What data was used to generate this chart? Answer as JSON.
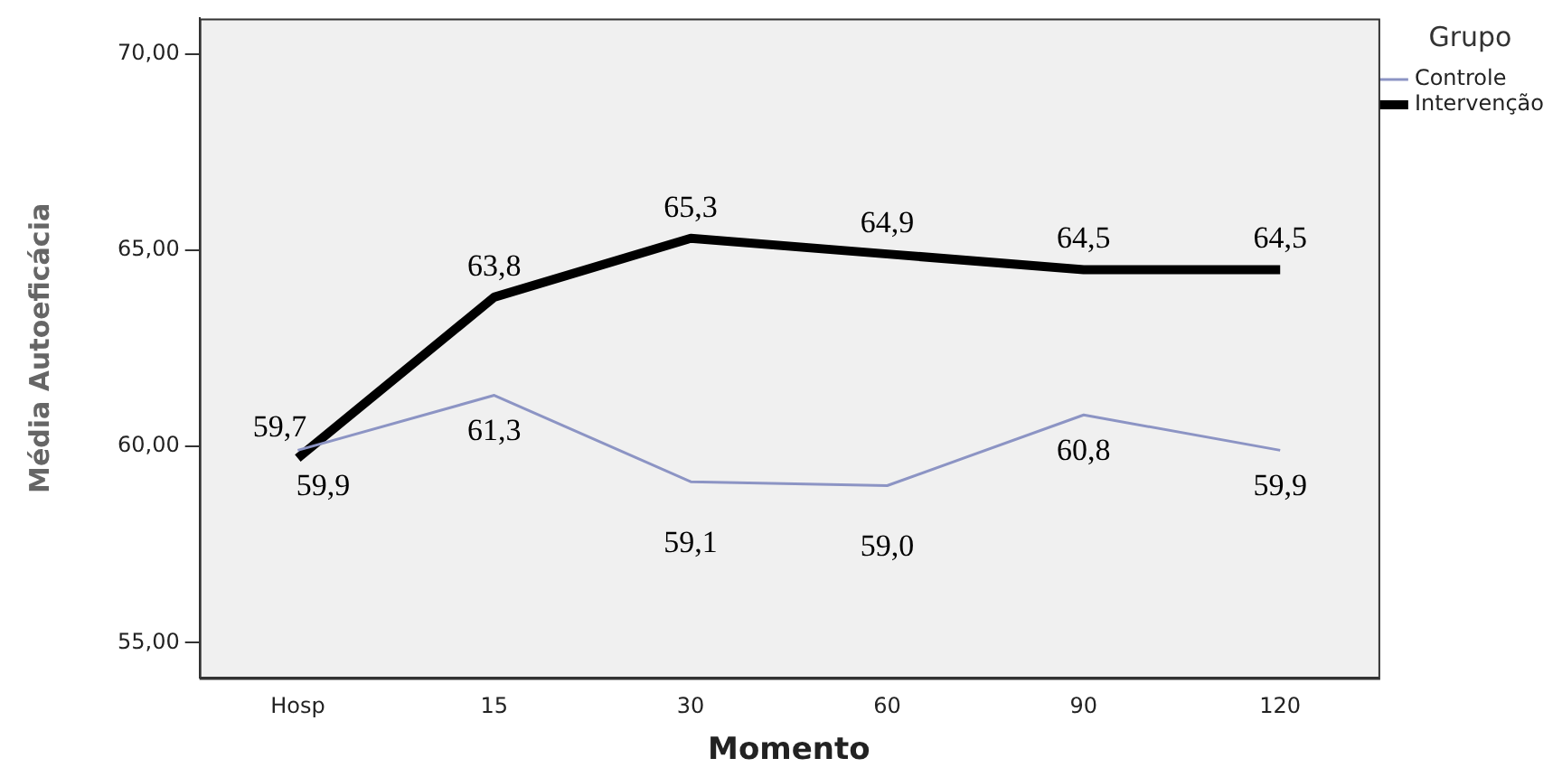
{
  "chart_data": {
    "type": "line",
    "xlabel": "Momento",
    "ylabel": "Média Autoeficácia",
    "legend_title": "Grupo",
    "legend": "top right",
    "grid": false,
    "marker": "none",
    "line_style": "solid",
    "categories": [
      "Hosp",
      "15",
      "30",
      "60",
      "90",
      "120"
    ],
    "ylim": [
      54.1,
      70.9
    ],
    "yticks": [
      {
        "value": 55,
        "label": "55,00"
      },
      {
        "value": 60,
        "label": "60,00"
      },
      {
        "value": 65,
        "label": "65,00"
      },
      {
        "value": 70,
        "label": "70,00"
      }
    ],
    "series": [
      {
        "name": "Controle",
        "color": "#8c94c4",
        "values": [
          59.9,
          61.3,
          59.1,
          59.0,
          60.8,
          59.9
        ],
        "value_labels": [
          "59,9",
          "61,3",
          "59,1",
          "59,0",
          "60,8",
          "59,9"
        ]
      },
      {
        "name": "Intervenção",
        "color": "#000000",
        "values": [
          59.7,
          63.8,
          65.3,
          64.9,
          64.5,
          64.5
        ],
        "value_labels": [
          "59,7",
          "63,8",
          "65,3",
          "64,9",
          "64,5",
          "64,5"
        ]
      }
    ]
  }
}
